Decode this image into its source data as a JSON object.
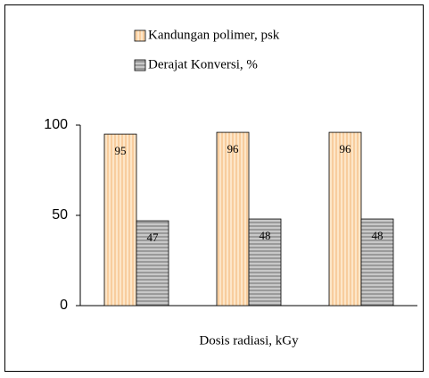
{
  "chart_data": {
    "type": "bar",
    "x_label": "Dosis radiasi, kGy",
    "categories": [
      null,
      null,
      null
    ],
    "series": [
      {
        "name": "Kandungan polimer, psk",
        "color": "#fde6c8",
        "values": [
          95,
          96,
          96
        ]
      },
      {
        "name": "Derajat Konversi, %",
        "color": "#c8c8c8",
        "values": [
          47,
          48,
          48
        ]
      }
    ],
    "ylim": [
      0,
      100
    ],
    "yticks": [
      0,
      50,
      100
    ],
    "grid": false,
    "legend": "top",
    "data_labels": true
  }
}
